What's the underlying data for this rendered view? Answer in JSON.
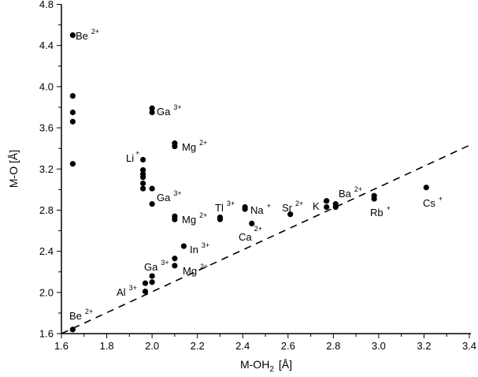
{
  "chart_data": {
    "type": "scatter",
    "title": "",
    "xlabel": "M-OH",
    "xlabel_sub": "2",
    "xlabel_unit": "[Å]",
    "ylabel": "M-O [Å]",
    "xlim": [
      1.6,
      3.4
    ],
    "ylim": [
      1.6,
      4.8
    ],
    "xticks": [
      "1.6",
      "1.8",
      "2.0",
      "2.2",
      "2.4",
      "2.6",
      "2.8",
      "3.0",
      "3.2",
      "3.4"
    ],
    "yticks": [
      "1.6",
      "2.0",
      "2.4",
      "2.8",
      "3.2",
      "3.6",
      "4.0",
      "4.4",
      "4.8"
    ],
    "grid": false,
    "marker_color": "#000000",
    "points": [
      {
        "x": 1.65,
        "y": 4.5
      },
      {
        "x": 1.65,
        "y": 3.91
      },
      {
        "x": 1.65,
        "y": 3.75
      },
      {
        "x": 1.65,
        "y": 3.66
      },
      {
        "x": 1.65,
        "y": 3.25
      },
      {
        "x": 1.65,
        "y": 1.64
      },
      {
        "x": 2.0,
        "y": 3.79
      },
      {
        "x": 2.0,
        "y": 3.75
      },
      {
        "x": 2.1,
        "y": 3.45
      },
      {
        "x": 2.1,
        "y": 3.42
      },
      {
        "x": 1.96,
        "y": 3.29
      },
      {
        "x": 1.96,
        "y": 3.19
      },
      {
        "x": 1.96,
        "y": 3.15
      },
      {
        "x": 1.96,
        "y": 3.12
      },
      {
        "x": 1.96,
        "y": 3.06
      },
      {
        "x": 1.96,
        "y": 3.01
      },
      {
        "x": 2.0,
        "y": 3.01
      },
      {
        "x": 2.0,
        "y": 2.86
      },
      {
        "x": 2.1,
        "y": 2.74
      },
      {
        "x": 2.1,
        "y": 2.71
      },
      {
        "x": 2.3,
        "y": 2.73
      },
      {
        "x": 2.3,
        "y": 2.71
      },
      {
        "x": 2.41,
        "y": 2.83
      },
      {
        "x": 2.41,
        "y": 2.81
      },
      {
        "x": 2.44,
        "y": 2.67
      },
      {
        "x": 2.14,
        "y": 2.45
      },
      {
        "x": 2.1,
        "y": 2.33
      },
      {
        "x": 2.1,
        "y": 2.26
      },
      {
        "x": 2.0,
        "y": 2.16
      },
      {
        "x": 2.0,
        "y": 2.1
      },
      {
        "x": 1.97,
        "y": 2.09
      },
      {
        "x": 1.97,
        "y": 2.01
      },
      {
        "x": 2.61,
        "y": 2.76
      },
      {
        "x": 2.77,
        "y": 2.89
      },
      {
        "x": 2.77,
        "y": 2.83
      },
      {
        "x": 2.81,
        "y": 2.86
      },
      {
        "x": 2.81,
        "y": 2.83
      },
      {
        "x": 2.98,
        "y": 2.94
      },
      {
        "x": 2.98,
        "y": 2.91
      },
      {
        "x": 3.21,
        "y": 3.02
      }
    ],
    "reference_line": {
      "style": "dashed",
      "x": [
        1.6,
        3.4
      ],
      "y": [
        1.6,
        3.43
      ]
    },
    "annotations": [
      {
        "ion": "Be",
        "charge": "2+"
      },
      {
        "ion": "Ga",
        "charge": "3+"
      },
      {
        "ion": "Mg",
        "charge": "2+"
      },
      {
        "ion": "Li",
        "charge": "+"
      },
      {
        "ion": "Ga",
        "charge": "3+"
      },
      {
        "ion": "Mg",
        "charge": "2+"
      },
      {
        "ion": "Tl",
        "charge": "3+"
      },
      {
        "ion": "Na",
        "charge": "+"
      },
      {
        "ion": "Ca",
        "charge": "2+"
      },
      {
        "ion": "In",
        "charge": "3+"
      },
      {
        "ion": "Ga",
        "charge": "3+"
      },
      {
        "ion": "Mg",
        "charge": "2+"
      },
      {
        "ion": "Al",
        "charge": "3+"
      },
      {
        "ion": "Be",
        "charge": "2+"
      },
      {
        "ion": "Sr",
        "charge": "2+"
      },
      {
        "ion": "K",
        "charge": "+"
      },
      {
        "ion": "Ba",
        "charge": "2+"
      },
      {
        "ion": "Rb",
        "charge": "+"
      },
      {
        "ion": "Cs",
        "charge": "+"
      }
    ]
  }
}
